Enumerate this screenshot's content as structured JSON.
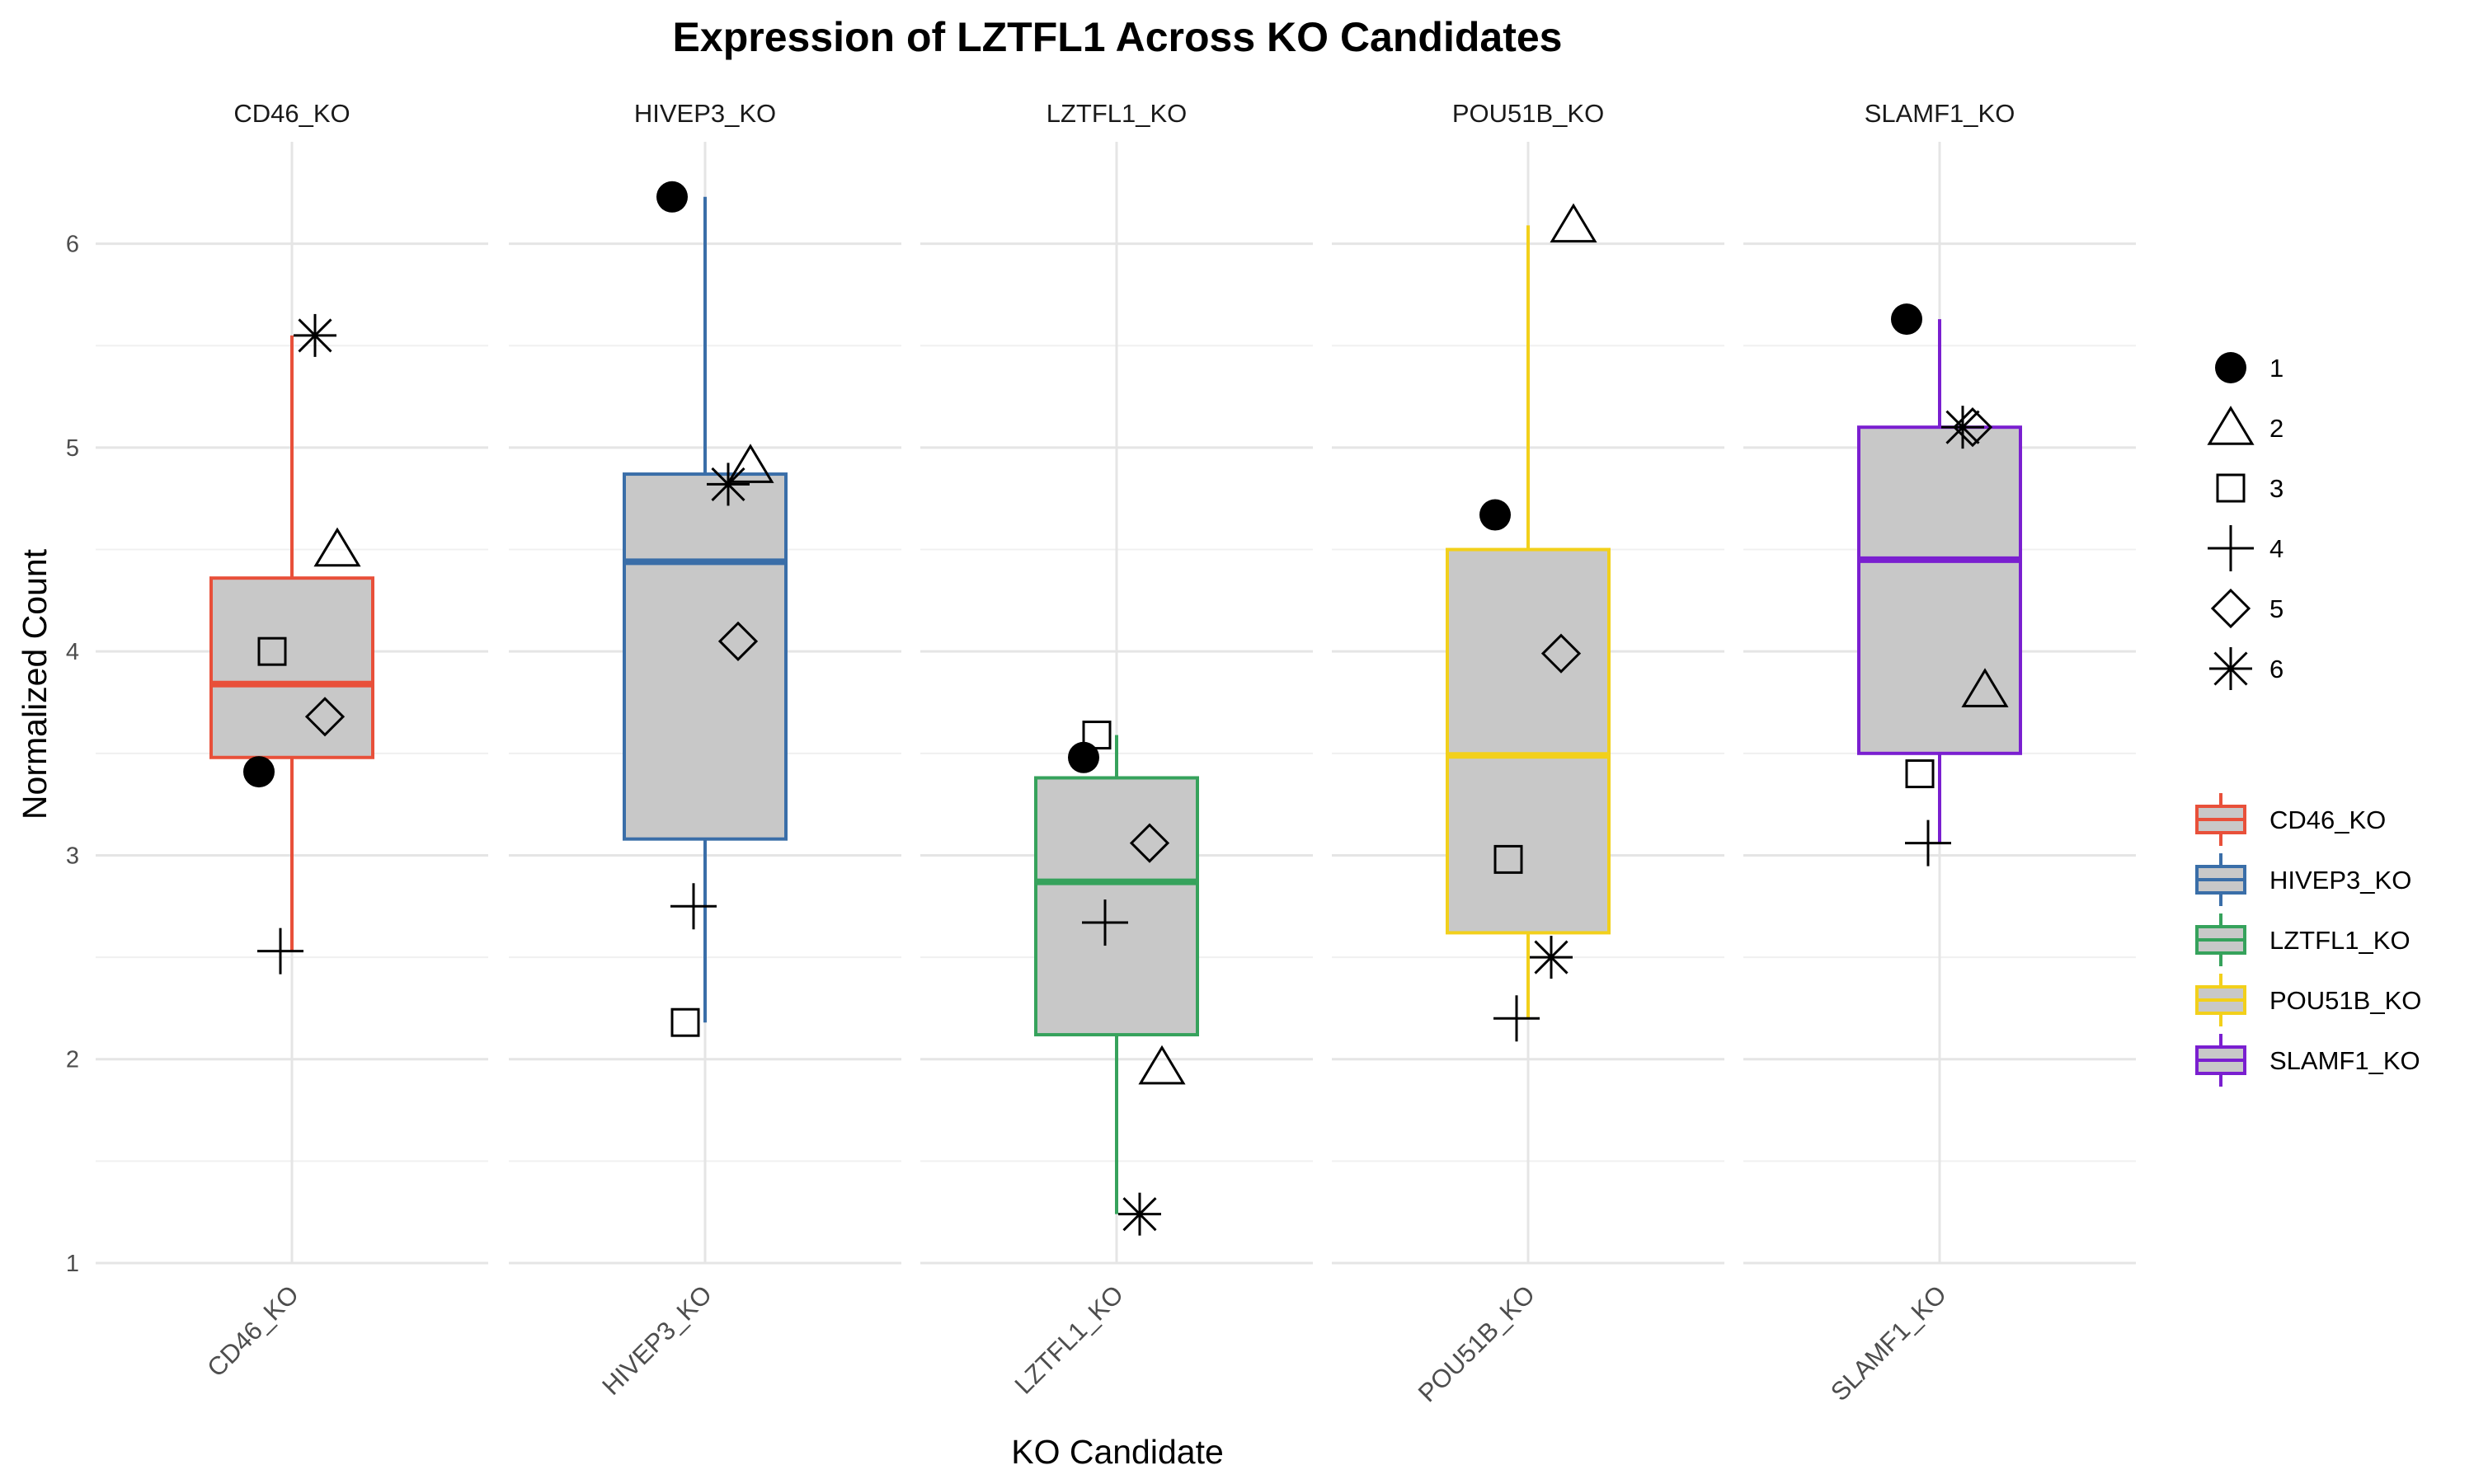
{
  "chart_data": {
    "type": "box",
    "title": "Expression of LZTFL1 Across KO Candidates",
    "xlabel": "KO Candidate",
    "ylabel": "Normalized Count",
    "ylim": [
      1,
      6.5
    ],
    "yticks": [
      1,
      2,
      3,
      4,
      5,
      6
    ],
    "grid": true,
    "facet_labels": [
      "CD46_KO",
      "HIVEP3_KO",
      "LZTFL1_KO",
      "POU51B_KO",
      "SLAMF1_KO"
    ],
    "shape_legend": {
      "position": "right",
      "entries": [
        {
          "label": "1",
          "shape": "filled-circle"
        },
        {
          "label": "2",
          "shape": "open-triangle"
        },
        {
          "label": "3",
          "shape": "open-square"
        },
        {
          "label": "4",
          "shape": "plus"
        },
        {
          "label": "5",
          "shape": "open-diamond"
        },
        {
          "label": "6",
          "shape": "asterisk"
        }
      ]
    },
    "fill_legend": {
      "position": "right",
      "entries": [
        {
          "label": "CD46_KO",
          "color": "#E8503A"
        },
        {
          "label": "HIVEP3_KO",
          "color": "#3A6EA8"
        },
        {
          "label": "LZTFL1_KO",
          "color": "#36A25C"
        },
        {
          "label": "POU51B_KO",
          "color": "#F2D01B"
        },
        {
          "label": "SLAMF1_KO",
          "color": "#7A1FD0"
        }
      ]
    },
    "box_fill": "#c8c8c8",
    "series": [
      {
        "name": "CD46_KO",
        "color": "#E8503A",
        "box": {
          "lower_whisker": 2.53,
          "q1": 3.48,
          "median": 3.84,
          "q3": 4.36,
          "upper_whisker": 5.55
        },
        "points": [
          {
            "sample": "1",
            "value": 3.41
          },
          {
            "sample": "2",
            "value": 4.5
          },
          {
            "sample": "3",
            "value": 4.0
          },
          {
            "sample": "4",
            "value": 2.53
          },
          {
            "sample": "5",
            "value": 3.68
          },
          {
            "sample": "6",
            "value": 5.55
          }
        ]
      },
      {
        "name": "HIVEP3_KO",
        "color": "#3A6EA8",
        "box": {
          "lower_whisker": 2.18,
          "q1": 3.08,
          "median": 4.44,
          "q3": 4.87,
          "upper_whisker": 6.23
        },
        "points": [
          {
            "sample": "1",
            "value": 6.23
          },
          {
            "sample": "2",
            "value": 4.91
          },
          {
            "sample": "3",
            "value": 2.18
          },
          {
            "sample": "4",
            "value": 2.75
          },
          {
            "sample": "5",
            "value": 4.05
          },
          {
            "sample": "6",
            "value": 4.82
          }
        ]
      },
      {
        "name": "LZTFL1_KO",
        "color": "#36A25C",
        "box": {
          "lower_whisker": 1.24,
          "q1": 2.12,
          "median": 2.87,
          "q3": 3.38,
          "upper_whisker": 3.59
        },
        "points": [
          {
            "sample": "1",
            "value": 3.48
          },
          {
            "sample": "2",
            "value": 1.96
          },
          {
            "sample": "3",
            "value": 3.59
          },
          {
            "sample": "4",
            "value": 2.67
          },
          {
            "sample": "5",
            "value": 3.06
          },
          {
            "sample": "6",
            "value": 1.24
          }
        ]
      },
      {
        "name": "POU51B_KO",
        "color": "#F2D01B",
        "box": {
          "lower_whisker": 2.2,
          "q1": 2.62,
          "median": 3.49,
          "q3": 4.5,
          "upper_whisker": 6.09
        },
        "points": [
          {
            "sample": "1",
            "value": 4.67
          },
          {
            "sample": "2",
            "value": 6.09
          },
          {
            "sample": "3",
            "value": 2.98
          },
          {
            "sample": "4",
            "value": 2.2
          },
          {
            "sample": "5",
            "value": 3.99
          },
          {
            "sample": "6",
            "value": 2.5
          }
        ]
      },
      {
        "name": "SLAMF1_KO",
        "color": "#7A1FD0",
        "box": {
          "lower_whisker": 3.06,
          "q1": 3.5,
          "median": 4.45,
          "q3": 5.1,
          "upper_whisker": 5.63
        },
        "points": [
          {
            "sample": "1",
            "value": 5.63
          },
          {
            "sample": "2",
            "value": 3.81
          },
          {
            "sample": "3",
            "value": 3.4
          },
          {
            "sample": "4",
            "value": 3.06
          },
          {
            "sample": "5",
            "value": 5.1
          },
          {
            "sample": "6",
            "value": 5.1
          }
        ]
      }
    ]
  }
}
